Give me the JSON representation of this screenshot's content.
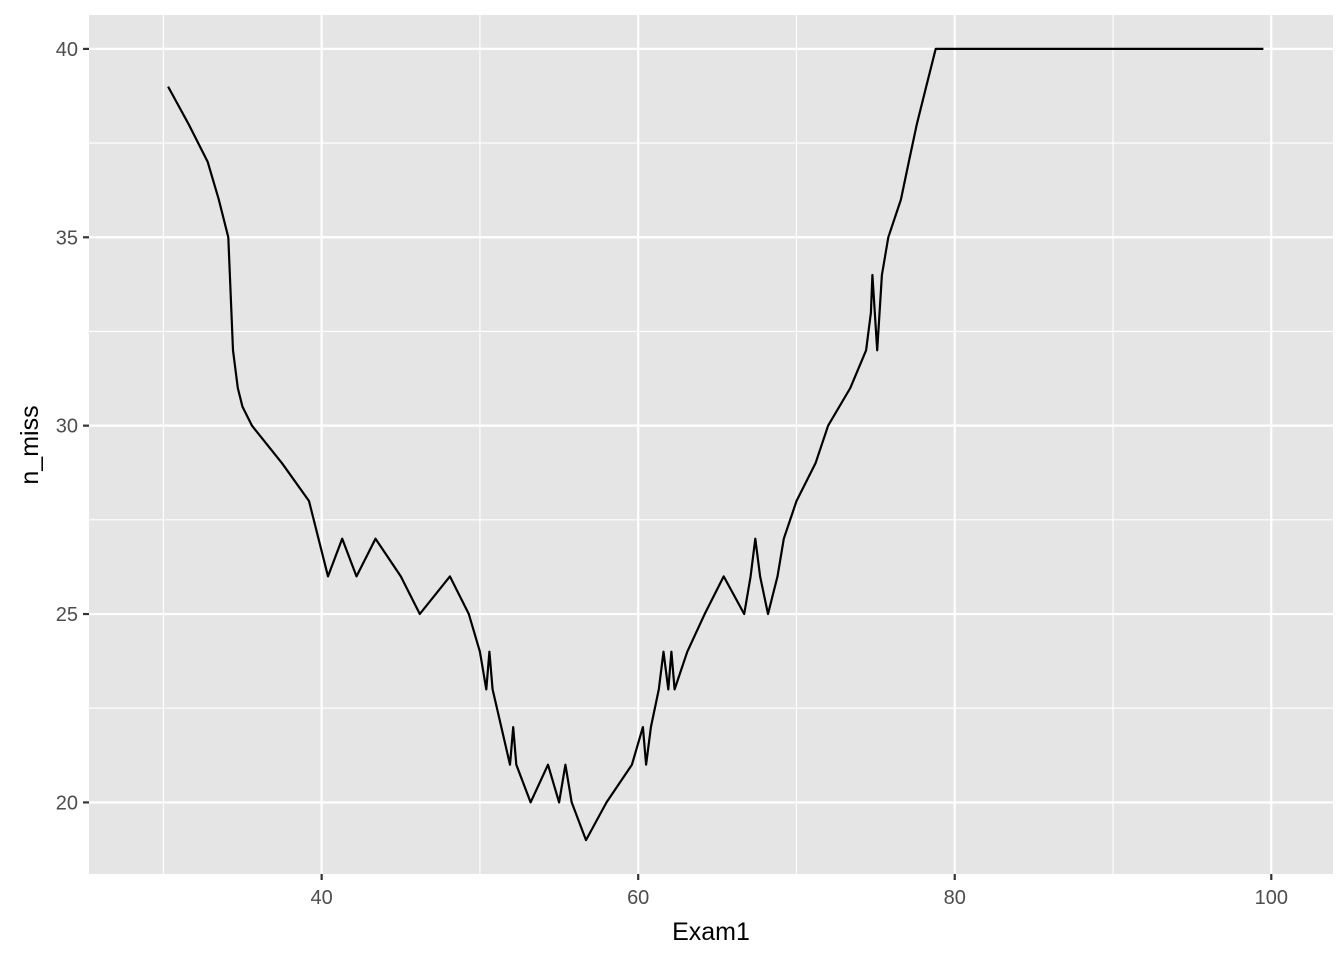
{
  "chart_data": {
    "type": "line",
    "xlabel": "Exam1",
    "ylabel": "n_miss",
    "xlim": [
      25.3,
      103.9
    ],
    "ylim": [
      18.1,
      40.9
    ],
    "x_major_ticks": [
      40,
      60,
      80,
      100
    ],
    "x_minor_ticks": [
      30,
      50,
      70,
      90
    ],
    "y_major_ticks": [
      20,
      25,
      30,
      35,
      40
    ],
    "y_minor_ticks": [
      22.5,
      27.5,
      32.5,
      37.5
    ],
    "grid": true,
    "background": "#e5e5e5",
    "line_color": "#000000",
    "series": [
      {
        "x": [
          30.3,
          31.6,
          32.8,
          33.5,
          34.1,
          34.4,
          34.7,
          35.0,
          35.6,
          37.5,
          39.2,
          39.8,
          40.4,
          41.3,
          42.2,
          43.4,
          45.0,
          46.2,
          48.1,
          49.3,
          50.0,
          50.4,
          50.6,
          50.8,
          51.9,
          52.1,
          52.3,
          53.2,
          54.3,
          55.0,
          55.4,
          55.8,
          56.7,
          58.0,
          59.6,
          60.3,
          60.5,
          60.8,
          61.3,
          61.6,
          61.9,
          62.1,
          62.3,
          63.1,
          64.2,
          65.4,
          66.7,
          67.1,
          67.4,
          67.7,
          68.2,
          68.8,
          69.2,
          70.0,
          71.2,
          72.0,
          73.4,
          74.4,
          74.7,
          74.8,
          75.1,
          75.4,
          75.8,
          76.6,
          77.1,
          77.6,
          78.2,
          78.8,
          99.5
        ],
        "y": [
          39,
          38,
          37,
          36,
          35,
          32,
          31,
          30.5,
          30,
          29,
          28,
          27,
          26,
          27,
          26,
          27,
          26,
          25,
          26,
          25,
          24,
          23,
          24,
          23,
          21,
          22,
          21,
          20,
          21,
          20,
          21,
          20,
          19,
          20,
          21,
          22,
          21,
          22,
          23,
          24,
          23,
          24,
          23,
          24,
          25,
          26,
          25,
          26,
          27,
          26,
          25,
          26,
          27,
          28,
          29,
          30,
          31,
          32,
          33,
          34,
          32,
          34,
          35,
          36,
          37,
          38,
          39,
          40,
          40
        ]
      }
    ]
  }
}
